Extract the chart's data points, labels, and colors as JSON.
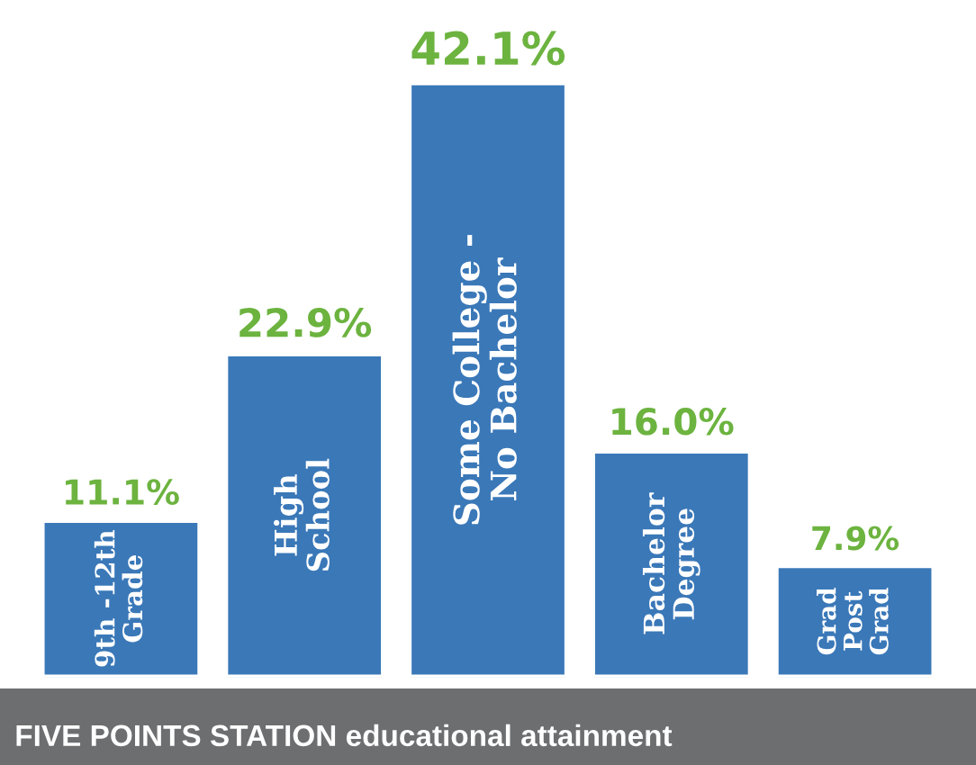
{
  "chart_data": {
    "type": "bar",
    "title": "FIVE POINTS STATION educational attainment",
    "categories": [
      "9th -12th\nGrade",
      "High\nSchool",
      "Some College -\nNo Bachelor",
      "Bachelor\nDegree",
      "Grad\nPost\nGrad"
    ],
    "values": [
      11.1,
      22.9,
      42.1,
      16.0,
      7.9
    ],
    "value_labels": [
      "11.1%",
      "22.9%",
      "42.1%",
      "16.0%",
      "7.9%"
    ],
    "color": "#3a78b8",
    "legend": false
  }
}
